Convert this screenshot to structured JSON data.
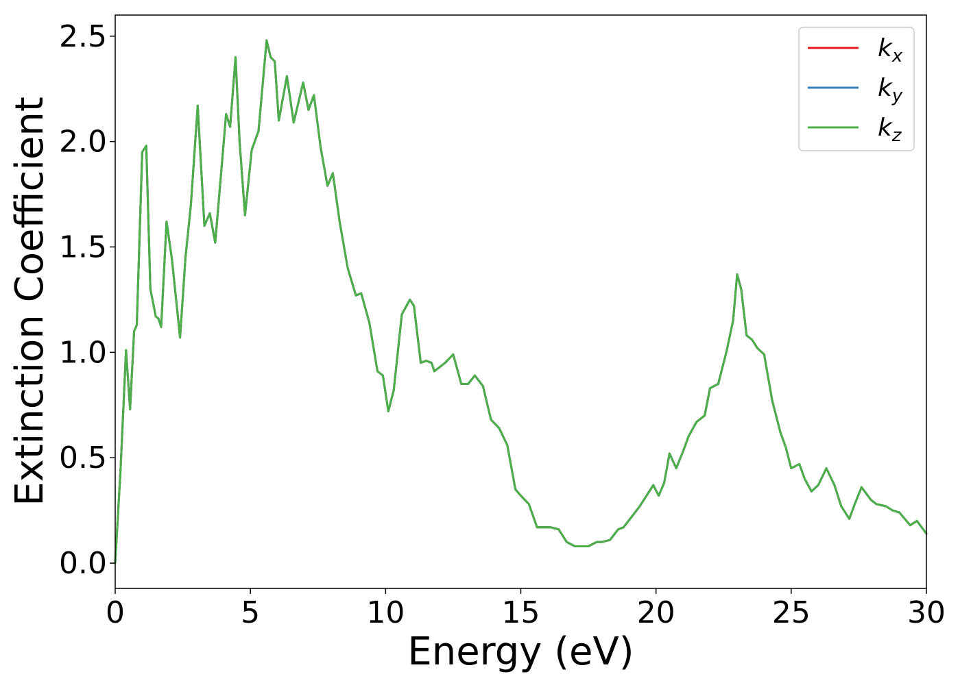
{
  "chart_data": {
    "type": "line",
    "title": "",
    "xlabel": "Energy (eV)",
    "ylabel": "Extinction Coefficient",
    "xlim": [
      0,
      30
    ],
    "ylim": [
      -0.12,
      2.6
    ],
    "xticks": [
      0,
      5,
      10,
      15,
      20,
      25,
      30
    ],
    "xtick_labels": [
      "0",
      "5",
      "10",
      "15",
      "20",
      "25",
      "30"
    ],
    "yticks": [
      0.0,
      0.5,
      1.0,
      1.5,
      2.0,
      2.5
    ],
    "ytick_labels": [
      "0.0",
      "0.5",
      "1.0",
      "1.5",
      "2.0",
      "2.5"
    ],
    "grid": false,
    "legend_position": "top-right",
    "x": [
      0.0,
      0.2,
      0.4,
      0.55,
      0.7,
      0.8,
      1.0,
      1.15,
      1.3,
      1.5,
      1.6,
      1.7,
      1.9,
      2.1,
      2.4,
      2.6,
      2.8,
      3.05,
      3.3,
      3.5,
      3.7,
      4.1,
      4.25,
      4.45,
      4.6,
      4.8,
      5.05,
      5.3,
      5.6,
      5.75,
      5.9,
      6.05,
      6.35,
      6.6,
      6.95,
      7.15,
      7.35,
      7.6,
      7.85,
      8.05,
      8.3,
      8.6,
      8.9,
      9.1,
      9.4,
      9.7,
      9.9,
      10.1,
      10.3,
      10.6,
      10.9,
      11.05,
      11.3,
      11.5,
      11.7,
      11.8,
      12.0,
      12.2,
      12.5,
      12.8,
      13.05,
      13.3,
      13.6,
      13.9,
      14.2,
      14.5,
      14.8,
      15.0,
      15.3,
      15.6,
      15.8,
      16.1,
      16.4,
      16.7,
      17.0,
      17.2,
      17.5,
      17.8,
      18.0,
      18.3,
      18.6,
      18.8,
      19.1,
      19.4,
      19.6,
      19.9,
      20.1,
      20.3,
      20.5,
      20.75,
      21.0,
      21.2,
      21.5,
      21.8,
      22.0,
      22.3,
      22.6,
      22.85,
      23.0,
      23.15,
      23.35,
      23.55,
      23.75,
      24.0,
      24.3,
      24.6,
      24.8,
      25.0,
      25.3,
      25.5,
      25.75,
      26.0,
      26.3,
      26.6,
      26.85,
      27.15,
      27.35,
      27.6,
      27.95,
      28.15,
      28.5,
      28.75,
      29.0,
      29.4,
      29.65,
      30.0
    ],
    "series": [
      {
        "name": "k_x",
        "color": "#e41a1c",
        "values": [
          0.0,
          0.45,
          1.01,
          0.73,
          1.1,
          1.13,
          1.95,
          1.98,
          1.3,
          1.17,
          1.16,
          1.12,
          1.62,
          1.44,
          1.07,
          1.45,
          1.7,
          2.17,
          1.6,
          1.66,
          1.52,
          2.13,
          2.07,
          2.4,
          2.0,
          1.65,
          1.96,
          2.05,
          2.48,
          2.4,
          2.38,
          2.1,
          2.31,
          2.09,
          2.28,
          2.15,
          2.22,
          1.97,
          1.79,
          1.85,
          1.62,
          1.4,
          1.27,
          1.28,
          1.14,
          0.91,
          0.89,
          0.72,
          0.82,
          1.18,
          1.25,
          1.22,
          0.95,
          0.96,
          0.95,
          0.91,
          0.93,
          0.95,
          0.99,
          0.85,
          0.85,
          0.89,
          0.84,
          0.68,
          0.64,
          0.56,
          0.35,
          0.32,
          0.28,
          0.17,
          0.17,
          0.17,
          0.16,
          0.1,
          0.08,
          0.08,
          0.08,
          0.1,
          0.1,
          0.11,
          0.16,
          0.17,
          0.22,
          0.27,
          0.31,
          0.37,
          0.32,
          0.38,
          0.52,
          0.45,
          0.53,
          0.6,
          0.67,
          0.7,
          0.83,
          0.85,
          1.0,
          1.15,
          1.37,
          1.3,
          1.08,
          1.06,
          1.02,
          0.99,
          0.77,
          0.62,
          0.55,
          0.45,
          0.47,
          0.4,
          0.34,
          0.37,
          0.45,
          0.37,
          0.27,
          0.21,
          0.28,
          0.36,
          0.3,
          0.28,
          0.27,
          0.25,
          0.24,
          0.18,
          0.2,
          0.14
        ]
      },
      {
        "name": "k_y",
        "color": "#377eb8",
        "values": [
          0.0,
          0.45,
          1.01,
          0.73,
          1.1,
          1.13,
          1.95,
          1.98,
          1.3,
          1.17,
          1.16,
          1.12,
          1.62,
          1.44,
          1.07,
          1.45,
          1.7,
          2.17,
          1.6,
          1.66,
          1.52,
          2.13,
          2.07,
          2.4,
          2.0,
          1.65,
          1.96,
          2.05,
          2.48,
          2.4,
          2.38,
          2.1,
          2.31,
          2.09,
          2.28,
          2.15,
          2.22,
          1.97,
          1.79,
          1.85,
          1.62,
          1.4,
          1.27,
          1.28,
          1.14,
          0.91,
          0.89,
          0.72,
          0.82,
          1.18,
          1.25,
          1.22,
          0.95,
          0.96,
          0.95,
          0.91,
          0.93,
          0.95,
          0.99,
          0.85,
          0.85,
          0.89,
          0.84,
          0.68,
          0.64,
          0.56,
          0.35,
          0.32,
          0.28,
          0.17,
          0.17,
          0.17,
          0.16,
          0.1,
          0.08,
          0.08,
          0.08,
          0.1,
          0.1,
          0.11,
          0.16,
          0.17,
          0.22,
          0.27,
          0.31,
          0.37,
          0.32,
          0.38,
          0.52,
          0.45,
          0.53,
          0.6,
          0.67,
          0.7,
          0.83,
          0.85,
          1.0,
          1.15,
          1.37,
          1.3,
          1.08,
          1.06,
          1.02,
          0.99,
          0.77,
          0.62,
          0.55,
          0.45,
          0.47,
          0.4,
          0.34,
          0.37,
          0.45,
          0.37,
          0.27,
          0.21,
          0.28,
          0.36,
          0.3,
          0.28,
          0.27,
          0.25,
          0.24,
          0.18,
          0.2,
          0.14
        ]
      },
      {
        "name": "k_z",
        "color": "#4daf4a",
        "values": [
          0.0,
          0.45,
          1.01,
          0.73,
          1.1,
          1.13,
          1.95,
          1.98,
          1.3,
          1.17,
          1.16,
          1.12,
          1.62,
          1.44,
          1.07,
          1.45,
          1.7,
          2.17,
          1.6,
          1.66,
          1.52,
          2.13,
          2.07,
          2.4,
          2.0,
          1.65,
          1.96,
          2.05,
          2.48,
          2.4,
          2.38,
          2.1,
          2.31,
          2.09,
          2.28,
          2.15,
          2.22,
          1.97,
          1.79,
          1.85,
          1.62,
          1.4,
          1.27,
          1.28,
          1.14,
          0.91,
          0.89,
          0.72,
          0.82,
          1.18,
          1.25,
          1.22,
          0.95,
          0.96,
          0.95,
          0.91,
          0.93,
          0.95,
          0.99,
          0.85,
          0.85,
          0.89,
          0.84,
          0.68,
          0.64,
          0.56,
          0.35,
          0.32,
          0.28,
          0.17,
          0.17,
          0.17,
          0.16,
          0.1,
          0.08,
          0.08,
          0.08,
          0.1,
          0.1,
          0.11,
          0.16,
          0.17,
          0.22,
          0.27,
          0.31,
          0.37,
          0.32,
          0.38,
          0.52,
          0.45,
          0.53,
          0.6,
          0.67,
          0.7,
          0.83,
          0.85,
          1.0,
          1.15,
          1.37,
          1.3,
          1.08,
          1.06,
          1.02,
          0.99,
          0.77,
          0.62,
          0.55,
          0.45,
          0.47,
          0.4,
          0.34,
          0.37,
          0.45,
          0.37,
          0.27,
          0.21,
          0.28,
          0.36,
          0.3,
          0.28,
          0.27,
          0.25,
          0.24,
          0.18,
          0.2,
          0.14
        ]
      }
    ],
    "legend": [
      {
        "base": "k",
        "sub": "x",
        "color": "#e41a1c"
      },
      {
        "base": "k",
        "sub": "y",
        "color": "#377eb8"
      },
      {
        "base": "k",
        "sub": "z",
        "color": "#4daf4a"
      }
    ]
  }
}
